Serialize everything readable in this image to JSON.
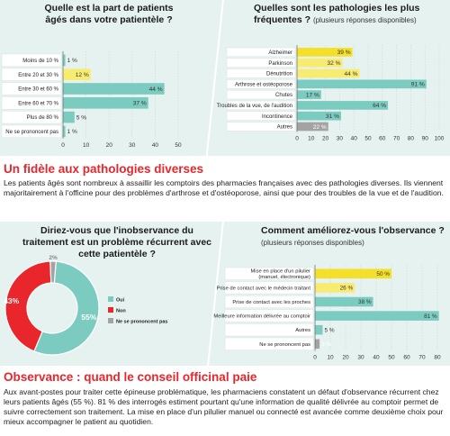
{
  "top": {
    "left_question": "Quelle est la part de patients âgés dans votre patientèle ?",
    "right_question": "Quelles sont les pathologies les plus fréquentes ?",
    "right_question_note": "(plusieurs réponses disponibles)"
  },
  "section1": {
    "title": "Un fidèle aux pathologies diverses",
    "body": "Les patients âgés sont nombreux à assaillir les comptoirs des pharmacies françaises avec des pathologies diverses. Ils viennent majoritairement à l'officine pour des problèmes d'arthrose et d'ostéoporose, ainsi que pour des troubles de la vue et de l'audition."
  },
  "middle": {
    "left_question": "Diriez-vous que l'inobservance du traitement est un problème récurrent avec cette patientèle ?",
    "right_question": "Comment améliorez-vous l'observance ?",
    "right_question_note": "(plusieurs réponses disponibles)"
  },
  "section2": {
    "title": "Observance : quand le conseil officinal paie",
    "body": "Aux avant-postes pour traiter cette épineuse problématique, les pharmaciens constatent un défaut d'observance récurrent chez leurs patients âgés (55 %). 81 % des interrogés estiment pourtant qu'une information de qualité délivrée au comptoir permet de suivre correctement son traitement. La mise en place d'un pilulier manuel ou connecté est avancée comme deuxième choix pour mieux accompagner le patient au quotidien."
  },
  "colors": {
    "teal": "#7ccbc0",
    "yellow": "#f8ec70",
    "yellow_strong": "#f5e029",
    "gray": "#a3a3a3",
    "red": "#e8262c"
  },
  "chart_data": [
    {
      "id": "age-share",
      "type": "bar",
      "orientation": "horizontal",
      "categories": [
        "Moins de 10 %",
        "Entre 20 et 30 %",
        "Entre 30 et 60 %",
        "Entre 60 et 70 %",
        "Plus de 80 %",
        "Ne se prononcent pas"
      ],
      "values": [
        1,
        12,
        44,
        37,
        5,
        1
      ],
      "value_labels": [
        "1 %",
        "12 %",
        "44 %",
        "37 %",
        "5 %",
        "1 %"
      ],
      "bar_colors": [
        "#7ccbc0",
        "#f8ec70",
        "#7ccbc0",
        "#7ccbc0",
        "#7ccbc0",
        "#7ccbc0"
      ],
      "xlim": [
        0,
        50
      ],
      "xticks": [
        0,
        10,
        20,
        30,
        40,
        50
      ]
    },
    {
      "id": "pathologies",
      "type": "bar",
      "orientation": "horizontal",
      "categories": [
        "Alzheimer",
        "Parkinson",
        "Dénutrition",
        "Arthrose et ostéoporose",
        "Chutes",
        "Troubles de la vue, de l'audition",
        "Incontinence",
        "Autres"
      ],
      "values": [
        39,
        32,
        44,
        91,
        17,
        64,
        31,
        22
      ],
      "value_labels": [
        "39 %",
        "32 %",
        "44 %",
        "91 %",
        "17 %",
        "64 %",
        "31 %",
        "22 %"
      ],
      "bar_colors": [
        "#f5e029",
        "#f8ec70",
        "#f8ec70",
        "#7ccbc0",
        "#7ccbc0",
        "#7ccbc0",
        "#7ccbc0",
        "#a3a3a3"
      ],
      "xlim": [
        0,
        100
      ],
      "xticks": [
        0,
        10,
        20,
        30,
        40,
        50,
        60,
        70,
        80,
        90,
        100
      ]
    },
    {
      "id": "inobservance",
      "type": "pie",
      "style": "donut",
      "labels": [
        "Oui",
        "Non",
        "Ne se prononcent pas"
      ],
      "values": [
        55,
        43,
        2
      ],
      "value_labels": [
        "55%",
        "43%",
        "2%"
      ],
      "colors": [
        "#7ccbc0",
        "#e8262c",
        "#a3a3a3"
      ],
      "legend_position": "right"
    },
    {
      "id": "observance-methods",
      "type": "bar",
      "orientation": "horizontal",
      "categories": [
        [
          "Mise en place d'un pilulier",
          "(manuel, électronique)"
        ],
        [
          "Prise de contact avec le médecin traitant"
        ],
        [
          "Prise de contact avec les proches"
        ],
        [
          "Meilleure information délivrée au comptoir"
        ],
        [
          "Autres"
        ],
        [
          "Ne se prononcent pas"
        ]
      ],
      "values": [
        50,
        26,
        38,
        81,
        5,
        3
      ],
      "value_labels": [
        "50 %",
        "26 %",
        "38 %",
        "81 %",
        "5 %",
        "3 %"
      ],
      "bar_colors": [
        "#f5e029",
        "#f8ec70",
        "#7ccbc0",
        "#7ccbc0",
        "#7ccbc0",
        "#a3a3a3"
      ],
      "xlim": [
        0,
        80
      ],
      "xticks": [
        0,
        10,
        20,
        30,
        40,
        50,
        60,
        70,
        80
      ]
    }
  ]
}
